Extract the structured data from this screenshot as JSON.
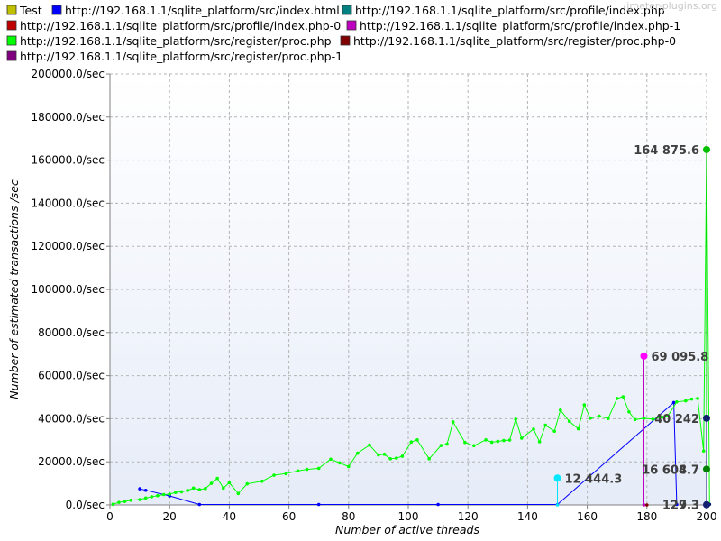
{
  "watermark": "jmeter-plugins.org",
  "chart_data": {
    "type": "line",
    "ylabel": "Number of estimated transactions /sec",
    "xlabel": "Number of active threads",
    "xlim": [
      0,
      200
    ],
    "ylim": [
      0,
      200000
    ],
    "x_ticks": [
      0,
      20,
      40,
      60,
      80,
      100,
      120,
      140,
      160,
      180,
      200
    ],
    "y_ticks": [
      {
        "v": 0,
        "label": "0.0/sec"
      },
      {
        "v": 20000,
        "label": "20000.0/sec"
      },
      {
        "v": 40000,
        "label": "40000.0/sec"
      },
      {
        "v": 60000,
        "label": "60000.0/sec"
      },
      {
        "v": 80000,
        "label": "80000.0/sec"
      },
      {
        "v": 100000,
        "label": "100000.0/sec"
      },
      {
        "v": 120000,
        "label": "120000.0/sec"
      },
      {
        "v": 140000,
        "label": "140000.0/sec"
      },
      {
        "v": 160000,
        "label": "160000.0/sec"
      },
      {
        "v": 180000,
        "label": "180000.0/sec"
      },
      {
        "v": 200000,
        "label": "200000.0/sec"
      }
    ],
    "grid": true,
    "legend_position": "top",
    "series": [
      {
        "name": "Test",
        "color": "#c0c000",
        "points": []
      },
      {
        "name": "http://192.168.1.1/sqlite_platform/src/index.html",
        "color": "#0000ff",
        "points": [
          [
            10,
            7500
          ],
          [
            12,
            6800
          ],
          [
            20,
            4200
          ],
          [
            30,
            200
          ],
          [
            70,
            200
          ],
          [
            110,
            200
          ],
          [
            150,
            200
          ],
          [
            189,
            47500
          ],
          [
            190,
            200
          ]
        ]
      },
      {
        "name": "http://192.168.1.1/sqlite_platform/src/profile/index.php",
        "color": "#008080",
        "points": []
      },
      {
        "name": "http://192.168.1.1/sqlite_platform/src/profile/index.php-0",
        "color": "#c00000",
        "points": []
      },
      {
        "name": "http://192.168.1.1/sqlite_platform/src/profile/index.php-1",
        "color": "#c000c0",
        "points": [
          [
            179,
            69095.8
          ],
          [
            179,
            0
          ]
        ]
      },
      {
        "name": "http://192.168.1.1/sqlite_platform/src/register/proc.php",
        "color": "#00ff00",
        "points": [
          [
            1,
            300
          ],
          [
            3,
            1200
          ],
          [
            5,
            1600
          ],
          [
            7,
            2200
          ],
          [
            10,
            2500
          ],
          [
            12,
            3200
          ],
          [
            14,
            3800
          ],
          [
            16,
            4300
          ],
          [
            18,
            4800
          ],
          [
            20,
            5000
          ],
          [
            22,
            5800
          ],
          [
            24,
            6100
          ],
          [
            26,
            6700
          ],
          [
            28,
            7800
          ],
          [
            30,
            7100
          ],
          [
            32,
            7600
          ],
          [
            34,
            10000
          ],
          [
            36,
            12300
          ],
          [
            38,
            7800
          ],
          [
            40,
            10300
          ],
          [
            43,
            5300
          ],
          [
            46,
            9800
          ],
          [
            51,
            11000
          ],
          [
            55,
            13800
          ],
          [
            59,
            14500
          ],
          [
            63,
            15800
          ],
          [
            66,
            16500
          ],
          [
            70,
            17000
          ],
          [
            74,
            21200
          ],
          [
            77,
            19500
          ],
          [
            80,
            17800
          ],
          [
            83,
            24000
          ],
          [
            87,
            27800
          ],
          [
            90,
            23200
          ],
          [
            92,
            23500
          ],
          [
            94,
            21400
          ],
          [
            96,
            21700
          ],
          [
            98,
            22600
          ],
          [
            101,
            29200
          ],
          [
            103,
            30200
          ],
          [
            107,
            21400
          ],
          [
            111,
            27600
          ],
          [
            113,
            28200
          ],
          [
            115,
            38500
          ],
          [
            119,
            29000
          ],
          [
            122,
            27500
          ],
          [
            126,
            30200
          ],
          [
            128,
            29100
          ],
          [
            130,
            29500
          ],
          [
            132,
            29900
          ],
          [
            134,
            30100
          ],
          [
            136,
            39800
          ],
          [
            138,
            31000
          ],
          [
            142,
            35200
          ],
          [
            144,
            29300
          ],
          [
            146,
            37000
          ],
          [
            149,
            34200
          ],
          [
            151,
            44000
          ],
          [
            154,
            38800
          ],
          [
            157,
            35300
          ],
          [
            159,
            46400
          ],
          [
            161,
            40200
          ],
          [
            164,
            41200
          ],
          [
            167,
            40100
          ],
          [
            170,
            49400
          ],
          [
            172,
            50200
          ],
          [
            174,
            43200
          ],
          [
            176,
            39600
          ],
          [
            179,
            40200
          ],
          [
            182,
            39800
          ],
          [
            185,
            40800
          ],
          [
            187,
            41300
          ],
          [
            190,
            47800
          ],
          [
            193,
            48300
          ],
          [
            195,
            49100
          ],
          [
            197,
            49400
          ],
          [
            199,
            25000
          ],
          [
            200,
            164875.6
          ],
          [
            201,
            300
          ]
        ]
      },
      {
        "name": "http://192.168.1.1/sqlite_platform/src/register/proc.php-0",
        "color": "#800000",
        "points": [
          [
            180,
            0
          ]
        ]
      },
      {
        "name": "http://192.168.1.1/sqlite_platform/src/register/proc.php-1",
        "color": "#800080",
        "points": []
      },
      {
        "name": "",
        "color": "#00e0ff",
        "legend": false,
        "points": [
          [
            150,
            12444.3
          ],
          [
            150,
            0
          ]
        ]
      },
      {
        "name": "",
        "color": "#00c000",
        "legend": false,
        "points": [
          [
            200,
            164875.6
          ],
          [
            200,
            16604.7
          ]
        ]
      },
      {
        "name": "",
        "color": "#101080",
        "legend": false,
        "points": [
          [
            200,
            40242
          ],
          [
            200,
            129.3
          ],
          [
            201,
            300
          ]
        ]
      }
    ],
    "markers": [
      {
        "x": 150,
        "y": 12444.3,
        "color": "#00e8ff",
        "label": "12 444.3",
        "side": "right"
      },
      {
        "x": 179,
        "y": 69095.8,
        "color": "#ff00ff",
        "label": "69 095.8",
        "side": "right"
      },
      {
        "x": 200,
        "y": 164875.6,
        "color": "#00c000",
        "label": "164 875.6",
        "side": "left"
      },
      {
        "x": 200,
        "y": 40242,
        "color": "#102070",
        "label": "40 242",
        "side": "left"
      },
      {
        "x": 200,
        "y": 16604.7,
        "color": "#008000",
        "label": "16 604.7",
        "side": "left"
      },
      {
        "x": 200,
        "y": 16604.7,
        "color": "#008000",
        "label": "16 608.7",
        "side": "left",
        "overlap": true
      },
      {
        "x": 200,
        "y": 129.3,
        "color": "#102070",
        "label": "129.3",
        "side": "left"
      },
      {
        "x": 200,
        "y": 129.3,
        "color": "#102070",
        "label": "27.3",
        "side": "left",
        "overlap": true
      }
    ]
  }
}
